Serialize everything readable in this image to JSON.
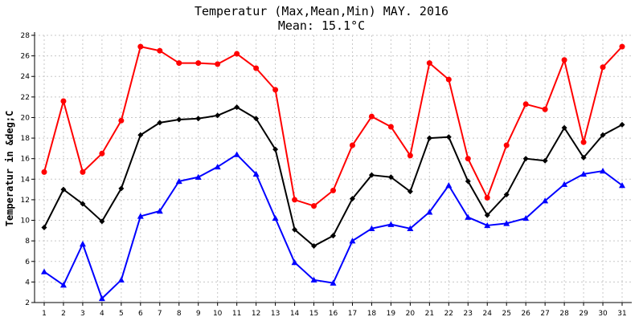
{
  "chart_data": {
    "type": "line",
    "title": "Temperatur (Max,Mean,Min) MAY. 2016",
    "subtitle": "Mean: 15.1°C",
    "xlabel": "",
    "ylabel": "Temperatur in &deg;C",
    "x": [
      1,
      2,
      3,
      4,
      5,
      6,
      7,
      8,
      9,
      10,
      11,
      12,
      13,
      14,
      15,
      16,
      17,
      18,
      19,
      20,
      21,
      22,
      23,
      24,
      25,
      26,
      27,
      28,
      29,
      30,
      31
    ],
    "ylim": [
      2,
      28
    ],
    "yticks": [
      2,
      4,
      6,
      8,
      10,
      12,
      14,
      16,
      18,
      20,
      22,
      24,
      26,
      28
    ],
    "grid": true,
    "series": [
      {
        "color": "#ff0000",
        "marker": "circle",
        "values": [
          14.7,
          21.6,
          14.7,
          16.5,
          19.7,
          26.9,
          26.5,
          25.3,
          25.3,
          25.2,
          26.2,
          24.8,
          22.7,
          12.0,
          11.4,
          12.9,
          17.3,
          20.1,
          19.1,
          16.3,
          25.3,
          23.7,
          16.0,
          12.2,
          17.3,
          21.3,
          20.8,
          25.6,
          17.6,
          24.9,
          26.9
        ]
      },
      {
        "color": "#000000",
        "marker": "diamond",
        "values": [
          9.3,
          13.0,
          11.6,
          9.9,
          13.1,
          18.3,
          19.5,
          19.8,
          19.9,
          20.2,
          21.0,
          19.9,
          16.9,
          9.1,
          7.5,
          8.5,
          12.1,
          14.4,
          14.2,
          12.8,
          18.0,
          18.1,
          13.8,
          10.5,
          12.5,
          16.0,
          15.8,
          19.0,
          16.1,
          18.3,
          19.3
        ]
      },
      {
        "color": "#0000ff",
        "marker": "triangle",
        "values": [
          5.0,
          3.7,
          7.7,
          2.4,
          4.2,
          10.4,
          10.9,
          13.8,
          14.2,
          15.2,
          16.4,
          14.5,
          10.2,
          5.9,
          4.2,
          3.9,
          8.0,
          9.2,
          9.6,
          9.2,
          10.8,
          13.4,
          10.3,
          9.5,
          9.7,
          10.2,
          11.9,
          13.5,
          14.5,
          14.8,
          13.4
        ]
      }
    ]
  }
}
